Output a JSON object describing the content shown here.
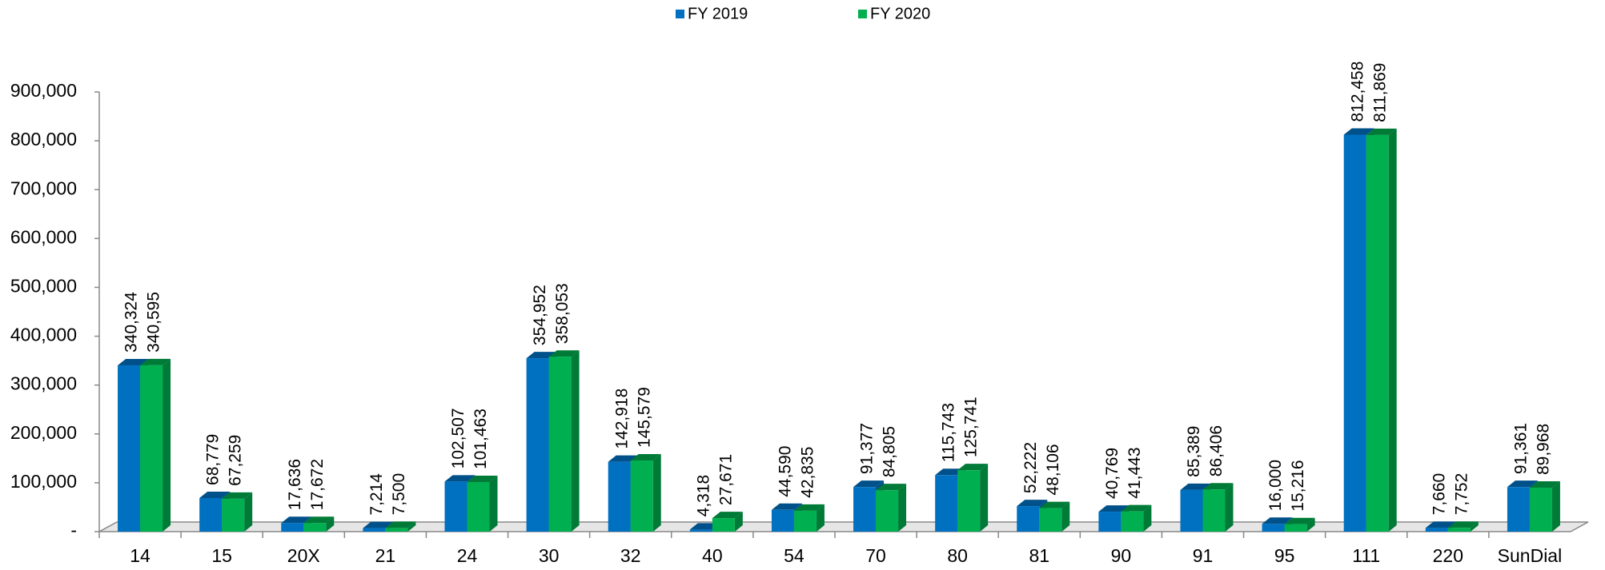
{
  "chart_data": {
    "type": "bar3d",
    "categories": [
      "14",
      "15",
      "20X",
      "21",
      "24",
      "30",
      "32",
      "40",
      "54",
      "70",
      "80",
      "81",
      "90",
      "91",
      "95",
      "111",
      "220",
      "SunDial"
    ],
    "series": [
      {
        "name": "FY 2019",
        "color": "#0070c0",
        "side_color": "#00508a",
        "values": [
          340324,
          68779,
          17636,
          7214,
          102507,
          354952,
          142918,
          4318,
          44590,
          91377,
          115743,
          52222,
          40769,
          85389,
          16000,
          812458,
          7660,
          91361
        ],
        "value_labels": [
          "340,324",
          "68,779",
          "17,636",
          "7,214",
          "102,507",
          "354,952",
          "142,918",
          "4,318",
          "44,590",
          "91,377",
          "115,743",
          "52,222",
          "40,769",
          "85,389",
          "16,000",
          "812,458",
          "7,660",
          "91,361"
        ]
      },
      {
        "name": "FY 2020",
        "color": "#00b050",
        "side_color": "#007a37",
        "values": [
          340595,
          67259,
          17672,
          7500,
          101463,
          358053,
          145579,
          27671,
          42835,
          84805,
          125741,
          48106,
          41443,
          86406,
          15216,
          811869,
          7752,
          89968
        ],
        "value_labels": [
          "340,595",
          "67,259",
          "17,672",
          "7,500",
          "101,463",
          "358,053",
          "145,579",
          "27,671",
          "42,835",
          "84,805",
          "125,741",
          "48,106",
          "41,443",
          "86,406",
          "15,216",
          "811,869",
          "7,752",
          "89,968"
        ]
      }
    ],
    "ylim": [
      0,
      900000
    ],
    "yticks": [
      {
        "value": 0,
        "label": "-"
      },
      {
        "value": 100000,
        "label": "100,000"
      },
      {
        "value": 200000,
        "label": "200,000"
      },
      {
        "value": 300000,
        "label": "300,000"
      },
      {
        "value": 400000,
        "label": "400,000"
      },
      {
        "value": 500000,
        "label": "500,000"
      },
      {
        "value": 600000,
        "label": "600,000"
      },
      {
        "value": 700000,
        "label": "700,000"
      },
      {
        "value": 800000,
        "label": "800,000"
      },
      {
        "value": 900000,
        "label": "900,000"
      }
    ],
    "grid": false,
    "legend": "top"
  }
}
